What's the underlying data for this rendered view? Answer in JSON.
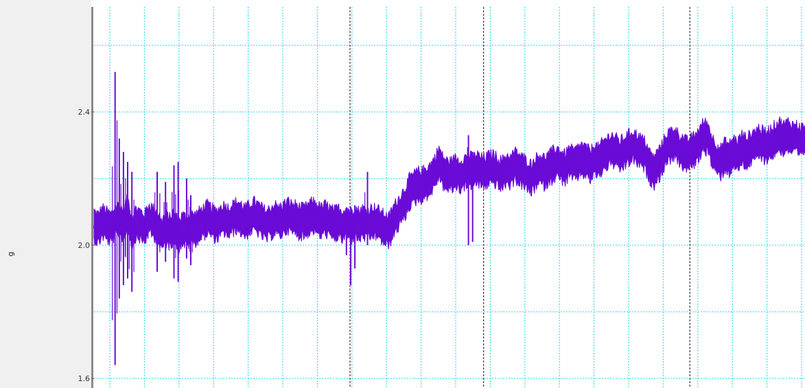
{
  "chart_data": {
    "type": "line",
    "title": "",
    "xlabel": "",
    "ylabel": "g",
    "ylim": [
      1.58,
      2.83
    ],
    "yticks": [
      {
        "value": 1.6,
        "label": "1.6"
      },
      {
        "value": 2.0,
        "label": "2.0"
      },
      {
        "value": 2.4,
        "label": "2.4"
      }
    ],
    "minor_y_step": 0.2,
    "grid": true,
    "line_color": "#6a0bd6",
    "grid_color": "#22d3ee",
    "marker_color": "#111111",
    "event_markers_fraction": [
      0.36,
      0.548,
      0.838
    ],
    "series": [
      {
        "values": [
          2.06,
          2.05,
          2.07,
          2.06,
          2.05,
          2.07,
          2.08,
          2.06,
          2.1,
          2.04,
          2.07,
          2.06,
          2.05,
          2.08,
          2.07,
          2.06,
          2.03,
          2.05,
          2.04,
          2.06,
          2.03,
          2.05,
          2.04,
          2.05,
          2.05,
          2.06,
          2.07,
          2.08,
          2.07,
          2.06,
          2.07,
          2.08,
          2.07,
          2.08,
          2.09,
          2.08,
          2.07,
          2.08,
          2.09,
          2.08,
          2.07,
          2.06,
          2.07,
          2.08,
          2.07,
          2.08,
          2.09,
          2.08,
          2.08,
          2.07,
          2.07,
          2.08,
          2.09,
          2.08,
          2.07,
          2.08,
          2.07,
          2.06,
          2.07,
          2.06,
          2.07,
          2.06,
          2.07,
          2.06,
          2.07,
          2.06,
          2.07,
          2.07,
          2.06,
          2.05,
          2.04,
          2.07,
          2.09,
          2.11,
          2.13,
          2.16,
          2.17,
          2.18,
          2.18,
          2.19,
          2.2,
          2.22,
          2.25,
          2.22,
          2.21,
          2.21,
          2.22,
          2.21,
          2.22,
          2.23,
          2.22,
          2.23,
          2.22,
          2.22,
          2.23,
          2.23,
          2.22,
          2.21,
          2.23,
          2.22,
          2.24,
          2.23,
          2.22,
          2.21,
          2.2,
          2.22,
          2.23,
          2.22,
          2.23,
          2.24,
          2.25,
          2.24,
          2.23,
          2.25,
          2.24,
          2.25,
          2.26,
          2.25,
          2.24,
          2.26,
          2.25,
          2.27,
          2.28,
          2.29,
          2.28,
          2.27,
          2.28,
          2.29,
          2.3,
          2.29,
          2.28,
          2.27,
          2.24,
          2.22,
          2.24,
          2.26,
          2.29,
          2.3,
          2.31,
          2.29,
          2.28,
          2.27,
          2.28,
          2.29,
          2.31,
          2.33,
          2.32,
          2.28,
          2.26,
          2.25,
          2.27,
          2.26,
          2.28,
          2.27,
          2.29,
          2.28,
          2.29,
          2.3,
          2.31,
          2.3,
          2.3,
          2.31,
          2.32,
          2.33,
          2.32,
          2.33,
          2.32,
          2.32,
          2.31,
          2.32
        ],
        "spikes": [
          {
            "index": 5,
            "low": 1.64,
            "high": 2.52
          },
          {
            "index": 6,
            "low": 1.84,
            "high": 2.32
          },
          {
            "index": 7,
            "low": 1.88,
            "high": 2.28
          },
          {
            "index": 8,
            "low": 1.9,
            "high": 2.25
          },
          {
            "index": 9,
            "low": 1.86,
            "high": 2.22
          },
          {
            "index": 15,
            "low": 1.92,
            "high": 2.22
          },
          {
            "index": 17,
            "low": 1.95,
            "high": 2.19
          },
          {
            "index": 19,
            "low": 1.9,
            "high": 2.24
          },
          {
            "index": 20,
            "low": 1.89,
            "high": 2.25
          },
          {
            "index": 22,
            "low": 1.96,
            "high": 2.2
          },
          {
            "index": 23,
            "low": 1.94,
            "high": 2.15
          },
          {
            "index": 60,
            "low": 1.97,
            "high": 2.1
          },
          {
            "index": 61,
            "low": 1.88,
            "high": 2.09
          },
          {
            "index": 62,
            "low": 1.93,
            "high": 2.12
          },
          {
            "index": 65,
            "low": 2.0,
            "high": 2.22
          },
          {
            "index": 89,
            "low": 2.0,
            "high": 2.33
          },
          {
            "index": 90,
            "low": 2.01,
            "high": 2.28
          }
        ]
      }
    ]
  }
}
